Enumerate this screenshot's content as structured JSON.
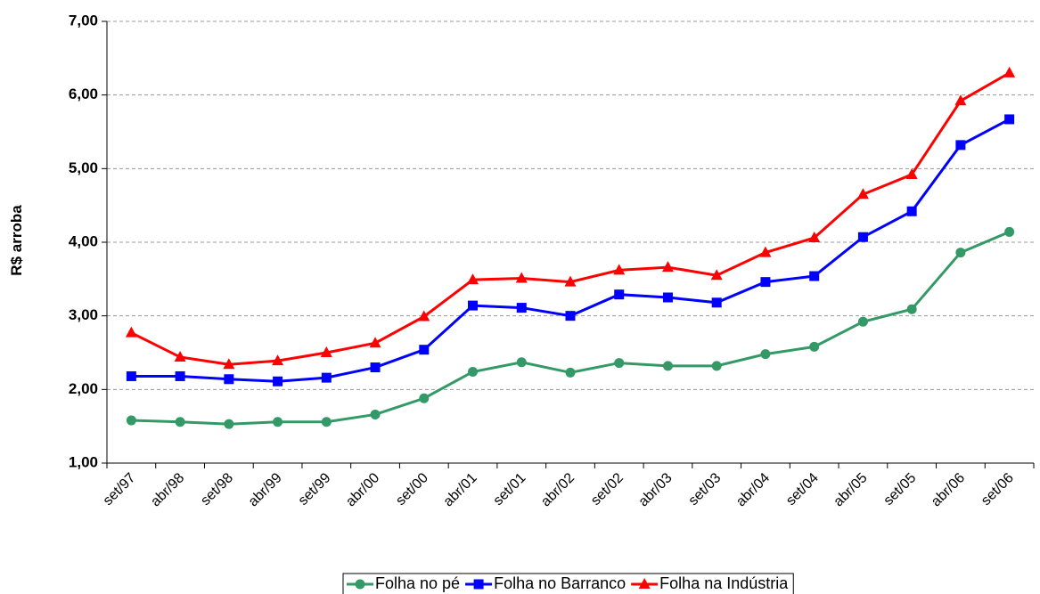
{
  "chart_data": {
    "type": "line",
    "y_label": "R$ arroba",
    "categories": [
      "set/97",
      "abr/98",
      "set/98",
      "abr/99",
      "set/99",
      "abr/00",
      "set/00",
      "abr/01",
      "set/01",
      "abr/02",
      "set/02",
      "abr/03",
      "set/03",
      "abr/04",
      "set/04",
      "abr/05",
      "set/05",
      "abr/06",
      "set/06"
    ],
    "series": [
      {
        "name": "Folha no pé",
        "color": "#339966",
        "marker": "circle",
        "values": [
          1.58,
          1.56,
          1.53,
          1.56,
          1.56,
          1.66,
          1.88,
          2.24,
          2.37,
          2.23,
          2.36,
          2.32,
          2.32,
          2.48,
          2.58,
          2.92,
          3.09,
          3.86,
          4.14
        ]
      },
      {
        "name": "Folha no Barranco",
        "color": "#0000ff",
        "marker": "square",
        "values": [
          2.18,
          2.18,
          2.14,
          2.11,
          2.16,
          2.3,
          2.54,
          3.14,
          3.11,
          3.0,
          3.29,
          3.25,
          3.18,
          3.46,
          3.54,
          4.07,
          4.42,
          5.32,
          5.67
        ]
      },
      {
        "name": "Folha na Indústria",
        "color": "#ff0000",
        "marker": "triangle",
        "values": [
          2.77,
          2.44,
          2.34,
          2.39,
          2.5,
          2.63,
          2.99,
          3.49,
          3.51,
          3.46,
          3.62,
          3.66,
          3.55,
          3.86,
          4.06,
          4.65,
          4.92,
          5.92,
          6.3
        ]
      }
    ],
    "ylim": [
      1,
      7
    ],
    "yticks": [
      {
        "value": 1,
        "label": "1,00"
      },
      {
        "value": 2,
        "label": "2,00"
      },
      {
        "value": 3,
        "label": "3,00"
      },
      {
        "value": 4,
        "label": "4,00"
      },
      {
        "value": 5,
        "label": "5,00"
      },
      {
        "value": 6,
        "label": "6,00"
      },
      {
        "value": 7,
        "label": "7,00"
      }
    ],
    "grid": true
  }
}
